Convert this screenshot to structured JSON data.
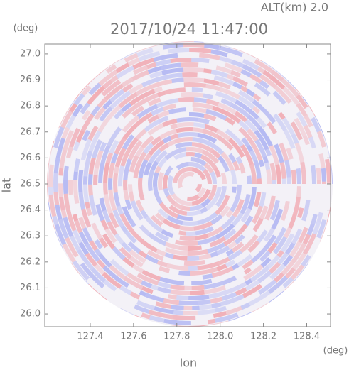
{
  "chart_data": {
    "type": "radar-ppi",
    "title": "2017/10/24 11:47:00",
    "subtitle": "ALT(km) 2.0",
    "xlabel": "lon",
    "ylabel": "lat",
    "xunit": "(deg)",
    "yunit": "(deg)",
    "xlim": [
      127.19,
      128.51
    ],
    "ylim": [
      25.951,
      27.038
    ],
    "xticks": [
      127.4,
      127.6,
      127.8,
      {
        "value": 128.0,
        "label": "128.0"
      },
      128.2,
      128.4
    ],
    "yticks": [
      {
        "value": 26.0,
        "label": "26.0"
      },
      26.1,
      26.2,
      26.3,
      26.4,
      26.5,
      26.6,
      26.7,
      26.8,
      26.9,
      {
        "value": 27.0,
        "label": "27.0"
      }
    ],
    "center": [
      127.86,
      26.5
    ]
  }
}
